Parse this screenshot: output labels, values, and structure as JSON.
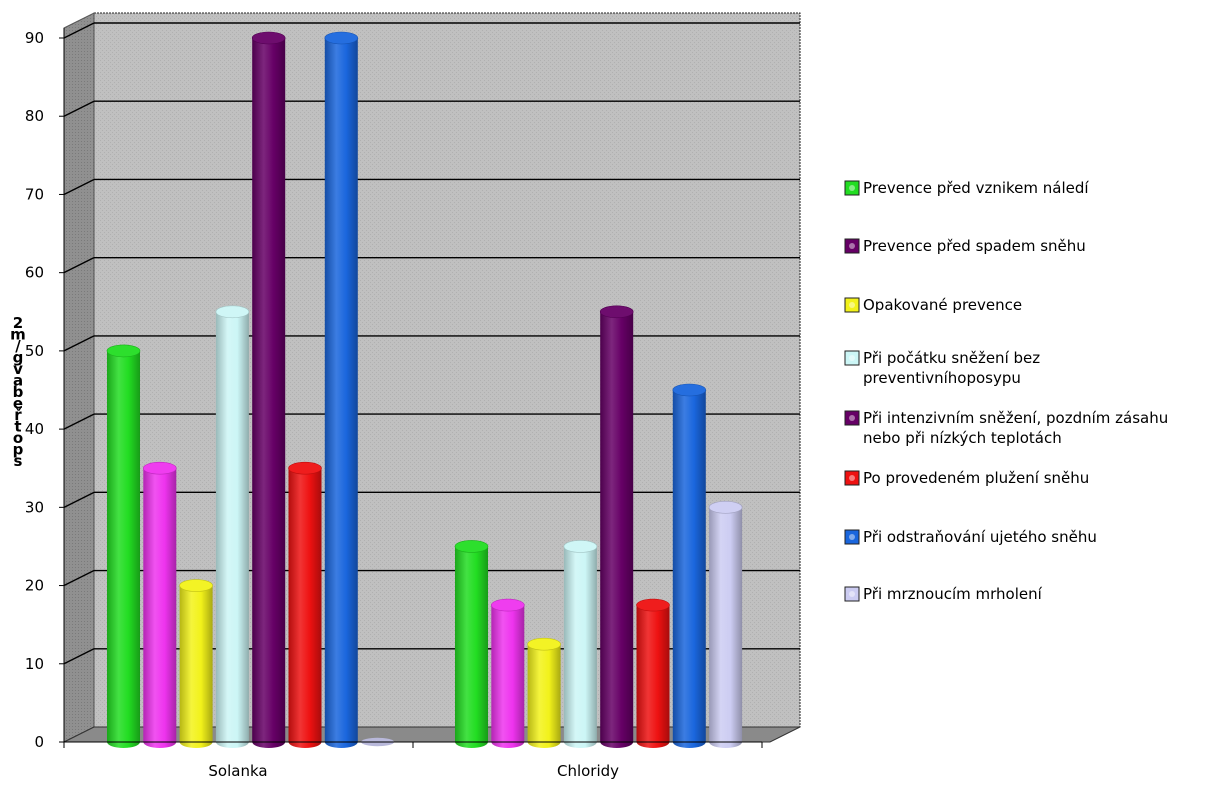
{
  "chart_data": {
    "type": "bar",
    "title": "",
    "xlabel": "",
    "ylabel": "2\nm\n/\ng\nv\na\nb\ne\nř\nt\no\np\ns",
    "ylim": [
      0,
      90
    ],
    "yticks": [
      0,
      10,
      20,
      30,
      40,
      50,
      60,
      70,
      80,
      90
    ],
    "categories": [
      "Solanka",
      "Chloridy"
    ],
    "grid": true,
    "legend_position": "right",
    "series": [
      {
        "name": "Prevence před vznikem náledí",
        "color": "#22dd22",
        "values": [
          50,
          25
        ]
      },
      {
        "name": "Prevence před spadem sněhu",
        "color": "#ee33ee",
        "values": [
          35,
          17.5
        ]
      },
      {
        "name": "Opakované prevence",
        "color": "#f2f21a",
        "values": [
          20,
          12.5
        ]
      },
      {
        "name": "Při počátku sněžení bez preventivníhoposypu",
        "color": "#ccf6f6",
        "values": [
          55,
          25
        ]
      },
      {
        "name": "Při intenzivním sněžení, pozdním zásahu nebo při nízkých teplotách",
        "color": "#660066",
        "values": [
          90,
          55
        ]
      },
      {
        "name": "Po provedeném plužení sněhu",
        "color": "#ee1111",
        "values": [
          35,
          17.5
        ]
      },
      {
        "name": "Při odstraňování ujetého sněhu",
        "color": "#1a66dd",
        "values": [
          90,
          45
        ]
      },
      {
        "name": "Při mrznoucím mrholení",
        "color": "#ccccf2",
        "values": [
          0,
          30
        ]
      }
    ],
    "legend_swatch_colors": [
      "#22dd22",
      "#660066",
      "#f2f21a",
      "#ccf6f6",
      "#660066",
      "#ee1111",
      "#1a66dd",
      "#ccccf2"
    ]
  }
}
